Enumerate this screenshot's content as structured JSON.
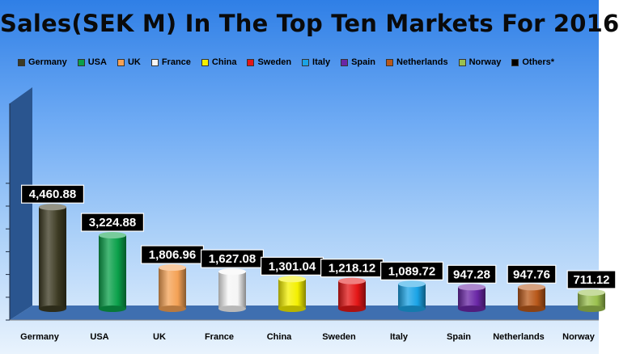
{
  "chart_data": {
    "type": "bar",
    "title": "Sales(SEK M) In The Top Ten Markets For 2016",
    "xlabel": "",
    "ylabel": "",
    "ylim": [
      0,
      6000
    ],
    "grid": false,
    "legend_position": "top",
    "categories": [
      "Germany",
      "USA",
      "UK",
      "France",
      "China",
      "Sweden",
      "Italy",
      "Spain",
      "Netherlands",
      "Norway"
    ],
    "values": [
      4460.88,
      3224.88,
      1806.96,
      1627.08,
      1301.04,
      1218.12,
      1089.72,
      947.28,
      947.76,
      711.12
    ],
    "value_labels": [
      "4,460.88",
      "3,224.88",
      "1,806.96",
      "1,627.08",
      "1,301.04",
      "1,218.12",
      "1,089.72",
      "947.28",
      "947.76",
      "711.12"
    ],
    "legend": [
      {
        "label": "Germany",
        "color": "#3c3a22"
      },
      {
        "label": "USA",
        "color": "#0aa04a"
      },
      {
        "label": "UK",
        "color": "#f4a155"
      },
      {
        "label": "France",
        "color": "#f5f5f5"
      },
      {
        "label": "China",
        "color": "#f4f000"
      },
      {
        "label": "Sweden",
        "color": "#e41616"
      },
      {
        "label": "Italy",
        "color": "#1aa3e6"
      },
      {
        "label": "Spain",
        "color": "#6a27a6"
      },
      {
        "label": "Netherlands",
        "color": "#b8581a"
      },
      {
        "label": "Norway",
        "color": "#9ac04e"
      },
      {
        "label": "Others*",
        "color": "#000000"
      }
    ]
  }
}
